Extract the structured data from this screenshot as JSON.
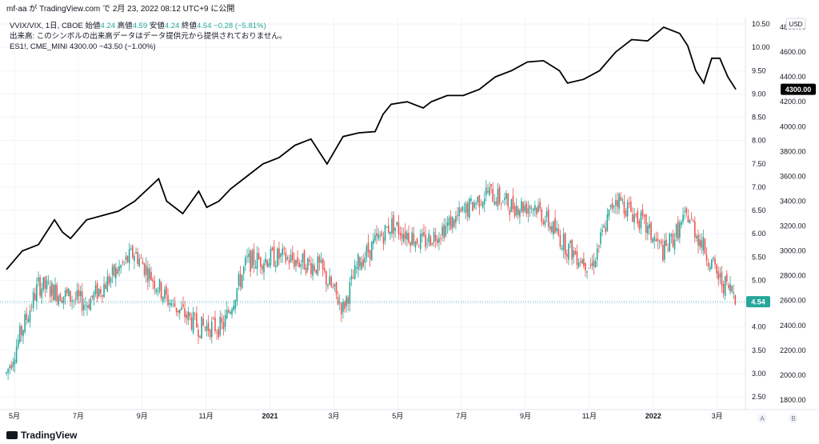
{
  "header": {
    "attribution": "mf-aa が TradingView.com で 2月 23, 2022 08:12 UTC+9 に公開"
  },
  "legend": {
    "line1": {
      "symbol": "VVIX/VIX, 1日, CBOE",
      "open_label": "始値",
      "open": "4.24",
      "high_label": "高値",
      "high": "4.59",
      "low_label": "安値",
      "low": "4.24",
      "close_label": "終値",
      "close": "4.54",
      "change": "−0.28 (−5.81%)"
    },
    "line2": "出来高: このシンボルの出来高データはデータ提供元から提供されておりません。",
    "line3": {
      "symbol": "ES1!, CME_MINI",
      "value": "4300.00",
      "change": "−43.50 (−1.00%)"
    }
  },
  "footer": {
    "brand": "TradingView"
  },
  "colors": {
    "up": "#26a69a",
    "down": "#ef5350",
    "line": "#000000",
    "grid": "#f0f3fa",
    "text": "#131722"
  },
  "chart_data": [
    {
      "type": "candlestick",
      "series_name": "VVIX/VIX",
      "x_ticks": [
        "5月",
        "7月",
        "9月",
        "11月",
        "2021",
        "3月",
        "5月",
        "7月",
        "9月",
        "11月",
        "2022",
        "3月"
      ],
      "ylim": [
        2.5,
        10.5
      ],
      "y_ticks": [
        "10.50",
        "10.00",
        "9.50",
        "9.00",
        "8.50",
        "8.00",
        "7.50",
        "7.00",
        "6.50",
        "6.00",
        "5.50",
        "5.00",
        "4.50",
        "4.00",
        "3.50",
        "3.00",
        "2.50"
      ],
      "last_value": "4.54",
      "trend": [
        [
          0,
          3.0
        ],
        [
          40,
          4.9
        ],
        [
          100,
          4.5
        ],
        [
          160,
          5.6
        ],
        [
          200,
          4.6
        ],
        [
          240,
          4.0
        ],
        [
          270,
          4.0
        ],
        [
          300,
          5.4
        ],
        [
          340,
          5.5
        ],
        [
          390,
          5.3
        ],
        [
          420,
          4.4
        ],
        [
          440,
          5.4
        ],
        [
          480,
          6.2
        ],
        [
          520,
          5.8
        ],
        [
          560,
          6.3
        ],
        [
          600,
          6.9
        ],
        [
          630,
          6.6
        ],
        [
          660,
          6.6
        ],
        [
          700,
          5.7
        ],
        [
          730,
          5.3
        ],
        [
          760,
          6.8
        ],
        [
          790,
          6.3
        ],
        [
          820,
          5.6
        ],
        [
          850,
          6.4
        ],
        [
          870,
          5.7
        ],
        [
          890,
          5.0
        ],
        [
          910,
          4.7
        ]
      ]
    },
    {
      "type": "line",
      "series_name": "ES1!",
      "ylim": [
        1800,
        4800
      ],
      "y_ticks": [
        "4800.00",
        "4600.00",
        "4400.00",
        "4200.00",
        "4000.00",
        "3800.00",
        "3600.00",
        "3400.00",
        "3200.00",
        "3000.00",
        "2800.00",
        "2600.00",
        "2400.00",
        "2200.00",
        "2000.00",
        "1800.00"
      ],
      "last_value": "4300.00",
      "x": [
        0,
        20,
        40,
        60,
        70,
        80,
        100,
        140,
        160,
        190,
        200,
        220,
        240,
        250,
        265,
        280,
        300,
        320,
        340,
        360,
        380,
        400,
        420,
        440,
        460,
        470,
        480,
        500,
        520,
        530,
        550,
        570,
        590,
        610,
        630,
        650,
        670,
        690,
        700,
        720,
        740,
        760,
        780,
        800,
        820,
        840,
        850,
        860,
        870,
        880,
        890,
        900,
        910
      ],
      "values": [
        2850,
        3000,
        3050,
        3250,
        3150,
        3100,
        3250,
        3320,
        3400,
        3580,
        3400,
        3300,
        3480,
        3350,
        3400,
        3500,
        3600,
        3700,
        3750,
        3850,
        3900,
        3700,
        3920,
        3950,
        3960,
        4100,
        4180,
        4200,
        4150,
        4200,
        4250,
        4250,
        4300,
        4400,
        4450,
        4520,
        4530,
        4450,
        4350,
        4380,
        4450,
        4600,
        4700,
        4690,
        4800,
        4750,
        4650,
        4450,
        4350,
        4550,
        4550,
        4400,
        4300
      ]
    }
  ]
}
